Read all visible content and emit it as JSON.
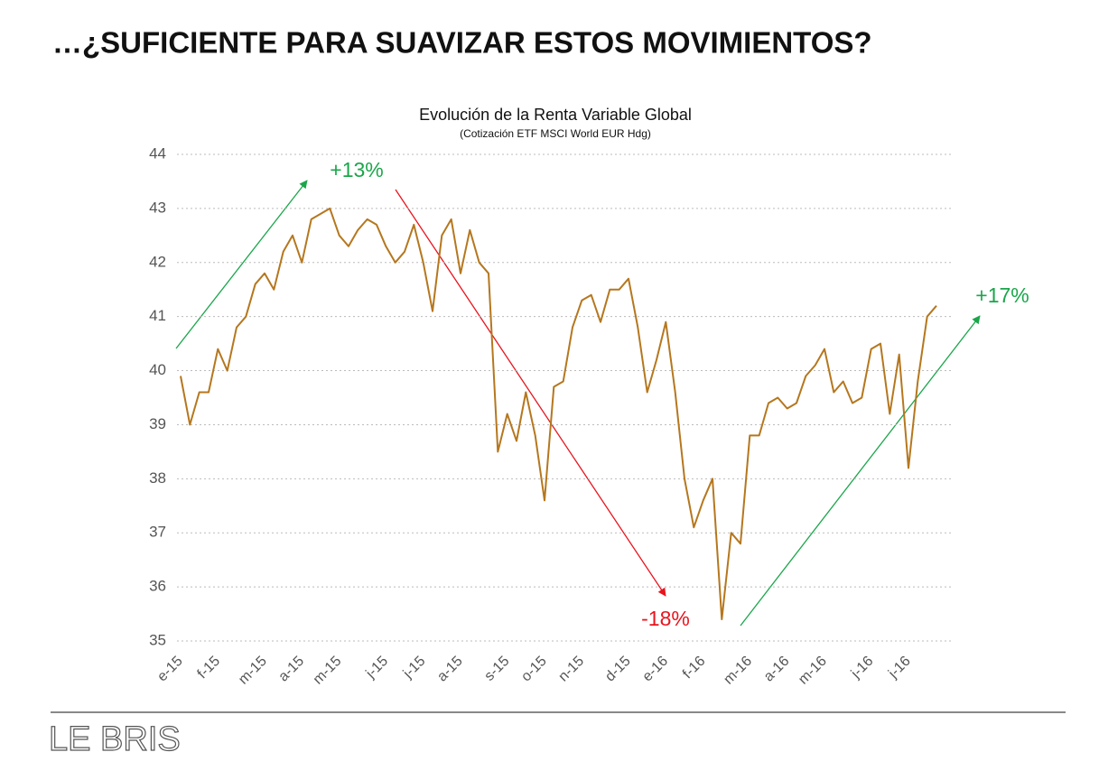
{
  "page_title": "…¿SUFICIENTE PARA SUAVIZAR ESTOS MOVIMIENTOS?",
  "logo": "LE BRIS",
  "chart_data": {
    "type": "line",
    "title": "Evolución de la Renta Variable Global",
    "subtitle": "(Cotización ETF MSCI World EUR Hdg)",
    "categories": [
      "e-15",
      null,
      null,
      null,
      "f-15",
      null,
      null,
      null,
      null,
      "m-15",
      null,
      null,
      null,
      "a-15",
      null,
      null,
      null,
      "m-15",
      null,
      null,
      null,
      null,
      "j-15",
      null,
      null,
      null,
      "j-15",
      null,
      null,
      null,
      "a-15",
      null,
      null,
      null,
      null,
      "s-15",
      null,
      null,
      null,
      "o-15",
      null,
      null,
      null,
      "n-15",
      null,
      null,
      null,
      null,
      "d-15",
      null,
      null,
      null,
      "e-16",
      null,
      null,
      null,
      "f-16",
      null,
      null,
      null,
      null,
      "m-16",
      null,
      null,
      null,
      "a-16",
      null,
      null,
      null,
      "m-16",
      null,
      null,
      null,
      null,
      "j-16",
      null,
      null,
      null,
      "j-16",
      null,
      null,
      null
    ],
    "values": [
      39.9,
      39.0,
      39.6,
      39.6,
      40.4,
      40.0,
      40.8,
      41.0,
      41.6,
      41.8,
      41.5,
      42.2,
      42.5,
      42.0,
      42.8,
      42.9,
      43.0,
      42.5,
      42.3,
      42.6,
      42.8,
      42.7,
      42.3,
      42.0,
      42.2,
      42.7,
      42.0,
      41.1,
      42.5,
      42.8,
      41.8,
      42.6,
      42.0,
      41.8,
      38.5,
      39.2,
      38.7,
      39.6,
      38.8,
      37.6,
      39.7,
      39.8,
      40.8,
      41.3,
      41.4,
      40.9,
      41.5,
      41.5,
      41.7,
      40.8,
      39.6,
      40.2,
      40.9,
      39.6,
      38.0,
      37.1,
      37.6,
      38.0,
      35.4,
      37.0,
      36.8,
      38.8,
      38.8,
      39.4,
      39.5,
      39.3,
      39.4,
      39.9,
      40.1,
      40.4,
      39.6,
      39.8,
      39.4,
      39.5,
      40.4,
      40.5,
      39.2,
      40.3,
      38.2,
      39.8,
      41.0,
      41.2
    ],
    "color": "#b5771e",
    "ylim": [
      35,
      44
    ],
    "yticks": [
      35,
      36,
      37,
      38,
      39,
      40,
      41,
      42,
      43,
      44
    ],
    "grid": true,
    "annotations": [
      {
        "text": "+13%",
        "color": "#1aa64a"
      },
      {
        "text": "-18%",
        "color": "#e8141e"
      },
      {
        "text": "+17%",
        "color": "#1aa64a"
      }
    ]
  }
}
